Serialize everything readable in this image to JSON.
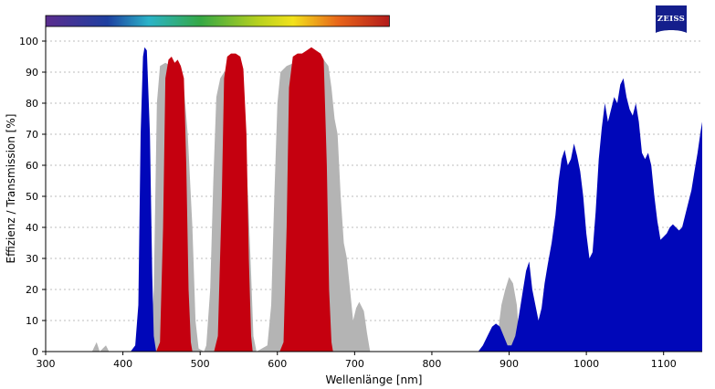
{
  "chart_data": {
    "type": "area",
    "title": "",
    "xlabel": "Wellenlänge [nm]",
    "ylabel": "Effizienz / Transmission [%]",
    "xlim": [
      300,
      1150
    ],
    "ylim": [
      0,
      105
    ],
    "x_ticks": [
      300,
      400,
      500,
      600,
      700,
      800,
      900,
      1000,
      1100
    ],
    "y_ticks": [
      0,
      10,
      20,
      30,
      40,
      50,
      60,
      70,
      80,
      90,
      100
    ],
    "grid": "horizontal dashed",
    "spectrum_bar": {
      "x_range": [
        300,
        745
      ],
      "description_colors": [
        "#5b2d8e",
        "#1e3fa0",
        "#2bb3c8",
        "#35a845",
        "#f2e21c",
        "#e8661a",
        "#b31b1b"
      ]
    },
    "series": [
      {
        "color": "#b4b4b4",
        "points": [
          [
            360,
            0
          ],
          [
            366,
            3
          ],
          [
            370,
            0
          ],
          [
            378,
            2
          ],
          [
            382,
            0
          ],
          [
            432,
            0
          ],
          [
            436,
            1
          ],
          [
            440,
            20
          ],
          [
            444,
            80
          ],
          [
            448,
            92
          ],
          [
            455,
            93
          ],
          [
            462,
            92
          ],
          [
            470,
            90
          ],
          [
            478,
            88
          ],
          [
            484,
            70
          ],
          [
            490,
            40
          ],
          [
            494,
            10
          ],
          [
            498,
            1
          ],
          [
            505,
            0
          ],
          [
            508,
            2
          ],
          [
            513,
            20
          ],
          [
            517,
            55
          ],
          [
            521,
            82
          ],
          [
            526,
            88
          ],
          [
            531,
            90
          ],
          [
            538,
            91
          ],
          [
            546,
            90
          ],
          [
            553,
            87
          ],
          [
            558,
            70
          ],
          [
            562,
            50
          ],
          [
            566,
            25
          ],
          [
            569,
            5
          ],
          [
            573,
            0
          ],
          [
            587,
            2
          ],
          [
            592,
            15
          ],
          [
            596,
            50
          ],
          [
            600,
            80
          ],
          [
            604,
            90
          ],
          [
            612,
            92
          ],
          [
            622,
            93
          ],
          [
            632,
            93
          ],
          [
            642,
            94
          ],
          [
            652,
            94
          ],
          [
            660,
            94
          ],
          [
            666,
            92
          ],
          [
            670,
            85
          ],
          [
            674,
            75
          ],
          [
            678,
            70
          ],
          [
            682,
            50
          ],
          [
            686,
            35
          ],
          [
            690,
            30
          ],
          [
            694,
            20
          ],
          [
            698,
            10
          ],
          [
            702,
            14
          ],
          [
            706,
            16
          ],
          [
            712,
            13
          ],
          [
            716,
            6
          ],
          [
            720,
            0
          ],
          [
            725,
            0
          ],
          [
            880,
            0
          ],
          [
            885,
            5
          ],
          [
            890,
            15
          ],
          [
            895,
            20
          ],
          [
            900,
            24
          ],
          [
            905,
            22
          ],
          [
            910,
            15
          ],
          [
            913,
            5
          ],
          [
            918,
            0
          ],
          [
            1150,
            0
          ]
        ]
      },
      {
        "color": "#0007b9",
        "points": [
          [
            410,
            0
          ],
          [
            416,
            2
          ],
          [
            420,
            15
          ],
          [
            423,
            70
          ],
          [
            426,
            95
          ],
          [
            428,
            98
          ],
          [
            431,
            97
          ],
          [
            435,
            70
          ],
          [
            438,
            25
          ],
          [
            440,
            5
          ],
          [
            443,
            0
          ],
          [
            860,
            0
          ],
          [
            866,
            2
          ],
          [
            872,
            5
          ],
          [
            878,
            8
          ],
          [
            883,
            9
          ],
          [
            888,
            8
          ],
          [
            893,
            5
          ],
          [
            898,
            2
          ],
          [
            903,
            2
          ],
          [
            908,
            5
          ],
          [
            913,
            12
          ],
          [
            918,
            20
          ],
          [
            922,
            26
          ],
          [
            926,
            29
          ],
          [
            930,
            20
          ],
          [
            934,
            15
          ],
          [
            938,
            10
          ],
          [
            942,
            14
          ],
          [
            946,
            22
          ],
          [
            950,
            28
          ],
          [
            955,
            35
          ],
          [
            960,
            44
          ],
          [
            964,
            55
          ],
          [
            968,
            62
          ],
          [
            972,
            65
          ],
          [
            976,
            60
          ],
          [
            980,
            62
          ],
          [
            984,
            67
          ],
          [
            988,
            63
          ],
          [
            992,
            58
          ],
          [
            996,
            50
          ],
          [
            1000,
            38
          ],
          [
            1004,
            30
          ],
          [
            1008,
            32
          ],
          [
            1012,
            45
          ],
          [
            1016,
            62
          ],
          [
            1020,
            72
          ],
          [
            1024,
            80
          ],
          [
            1028,
            74
          ],
          [
            1032,
            78
          ],
          [
            1036,
            82
          ],
          [
            1040,
            80
          ],
          [
            1044,
            86
          ],
          [
            1048,
            88
          ],
          [
            1052,
            82
          ],
          [
            1056,
            78
          ],
          [
            1060,
            76
          ],
          [
            1064,
            80
          ],
          [
            1068,
            74
          ],
          [
            1072,
            64
          ],
          [
            1076,
            62
          ],
          [
            1080,
            64
          ],
          [
            1084,
            60
          ],
          [
            1088,
            50
          ],
          [
            1092,
            42
          ],
          [
            1096,
            36
          ],
          [
            1100,
            37
          ],
          [
            1104,
            38
          ],
          [
            1108,
            40
          ],
          [
            1112,
            41
          ],
          [
            1116,
            40
          ],
          [
            1120,
            39
          ],
          [
            1124,
            40
          ],
          [
            1128,
            44
          ],
          [
            1132,
            48
          ],
          [
            1136,
            52
          ],
          [
            1140,
            58
          ],
          [
            1144,
            64
          ],
          [
            1148,
            71
          ],
          [
            1150,
            74
          ],
          [
            1150,
            0
          ]
        ]
      },
      {
        "color": "#c5000f",
        "points": [
          [
            443,
            0
          ],
          [
            448,
            3
          ],
          [
            452,
            40
          ],
          [
            455,
            88
          ],
          [
            459,
            94
          ],
          [
            463,
            95
          ],
          [
            467,
            93
          ],
          [
            471,
            94
          ],
          [
            475,
            92
          ],
          [
            479,
            88
          ],
          [
            482,
            60
          ],
          [
            485,
            20
          ],
          [
            488,
            3
          ],
          [
            490,
            0
          ],
          [
            518,
            0
          ],
          [
            523,
            5
          ],
          [
            528,
            50
          ],
          [
            531,
            88
          ],
          [
            535,
            95
          ],
          [
            540,
            96
          ],
          [
            546,
            96
          ],
          [
            552,
            95
          ],
          [
            556,
            91
          ],
          [
            560,
            70
          ],
          [
            563,
            30
          ],
          [
            566,
            5
          ],
          [
            568,
            0
          ],
          [
            603,
            0
          ],
          [
            608,
            3
          ],
          [
            612,
            40
          ],
          [
            615,
            85
          ],
          [
            620,
            95
          ],
          [
            626,
            96
          ],
          [
            632,
            96
          ],
          [
            638,
            97
          ],
          [
            644,
            98
          ],
          [
            650,
            97
          ],
          [
            656,
            96
          ],
          [
            660,
            94
          ],
          [
            664,
            60
          ],
          [
            667,
            20
          ],
          [
            670,
            3
          ],
          [
            672,
            0
          ]
        ]
      }
    ]
  },
  "brand": {
    "logo_text": "ZEISS",
    "logo_color": "#141e8c"
  }
}
